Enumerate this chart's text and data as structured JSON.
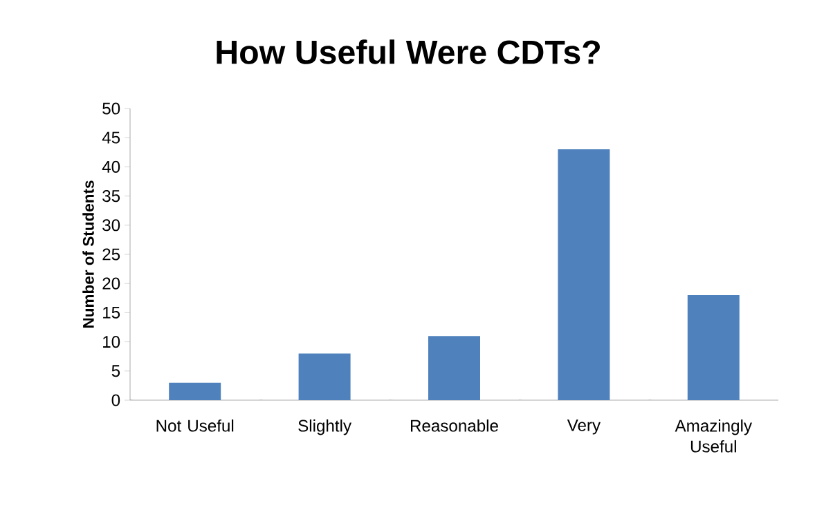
{
  "chart_data": {
    "type": "bar",
    "title": "How Useful Were CDTs?",
    "ylabel": "Number of Students",
    "categories": [
      "Not Useful",
      "Slightly",
      "Reasonable",
      "Very",
      "Amazingly Useful"
    ],
    "values": [
      3,
      8,
      11,
      43,
      18
    ],
    "color": "#4f81bd",
    "ylim": [
      0,
      50
    ],
    "yticks": [
      0,
      5,
      10,
      15,
      20,
      25,
      30,
      35,
      40,
      45,
      50
    ],
    "grid": false
  }
}
